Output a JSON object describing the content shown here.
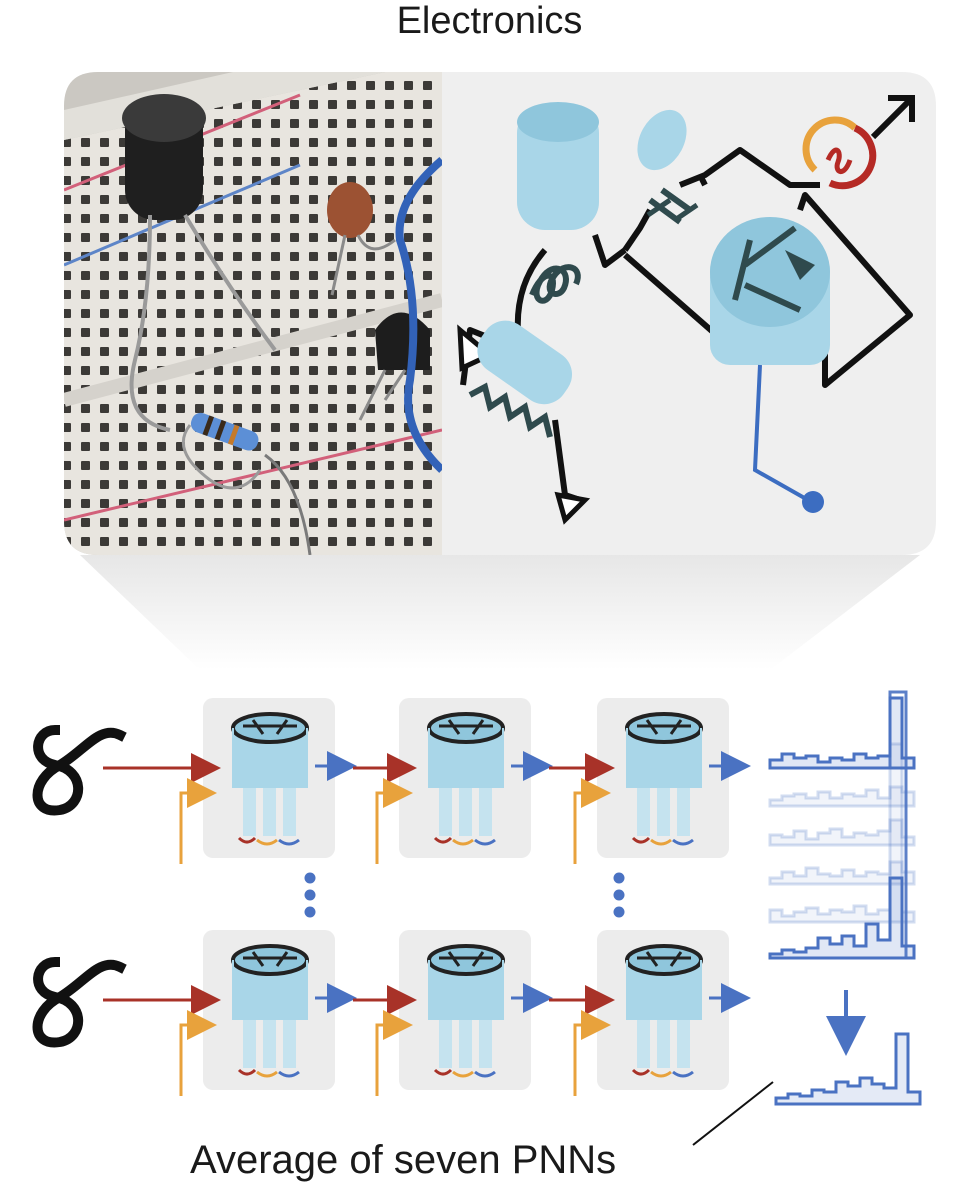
{
  "figure": {
    "title": "Electronics",
    "caption": "Average of seven PNNs",
    "colors": {
      "input_arrow": "#a83228",
      "param_arrow": "#e8a23c",
      "output_arrow": "#4a72c2",
      "device_body": "#a9d6e8",
      "device_stroke": "#222222",
      "histogram": "#4a72c2",
      "panel_bg": "#ececec",
      "schematic_bg": "#efefef"
    },
    "icons": [
      "photo-breadboard",
      "inductor-icon",
      "capacitor-icon",
      "resistor-icon",
      "transistor-icon",
      "ac-source-icon",
      "digit-eight-icon",
      "ellipsis-dots-icon",
      "histogram-icon"
    ]
  }
}
